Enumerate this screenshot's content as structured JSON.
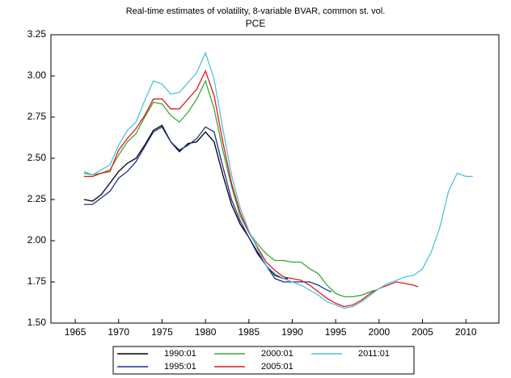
{
  "chart_data": {
    "type": "line",
    "title": "Real-time estimates of volatility, 8-variable BVAR, common st. vol.",
    "subtitle": "PCE",
    "xlim": [
      1962.2,
      2013.8
    ],
    "xticks": [
      1965,
      1970,
      1975,
      1980,
      1985,
      1990,
      1995,
      2000,
      2005,
      2010
    ],
    "ylim": [
      1.5,
      3.25
    ],
    "yticks": [
      {
        "value": 1.5,
        "label": "1.50"
      },
      {
        "value": 1.75,
        "label": "1.75"
      },
      {
        "value": 2.0,
        "label": "2.00"
      },
      {
        "value": 2.25,
        "label": "2.25"
      },
      {
        "value": 2.5,
        "label": "2.50"
      },
      {
        "value": 2.75,
        "label": "2.75"
      },
      {
        "value": 3.0,
        "label": "3.00"
      },
      {
        "value": 3.25,
        "label": "3.25"
      }
    ],
    "series": [
      {
        "name": "1990:01",
        "color": "#000000",
        "x": [
          1966,
          1967,
          1968,
          1969,
          1970,
          1971,
          1972,
          1973,
          1974,
          1975,
          1976,
          1977,
          1978,
          1979,
          1980,
          1981,
          1982,
          1983,
          1984,
          1985,
          1986,
          1987,
          1988,
          1989,
          1989.5
        ],
        "values": [
          2.25,
          2.24,
          2.28,
          2.35,
          2.42,
          2.47,
          2.5,
          2.58,
          2.67,
          2.7,
          2.6,
          2.54,
          2.59,
          2.6,
          2.66,
          2.6,
          2.4,
          2.22,
          2.1,
          2.02,
          1.93,
          1.85,
          1.79,
          1.77,
          1.77
        ]
      },
      {
        "name": "1995:01",
        "color": "#1f2f8f",
        "x": [
          1966,
          1967,
          1968,
          1969,
          1970,
          1971,
          1972,
          1973,
          1974,
          1975,
          1976,
          1977,
          1978,
          1979,
          1980,
          1981,
          1982,
          1983,
          1984,
          1985,
          1986,
          1987,
          1988,
          1989,
          1990,
          1991,
          1992,
          1993,
          1994,
          1994.5
        ],
        "values": [
          2.22,
          2.22,
          2.26,
          2.3,
          2.38,
          2.42,
          2.48,
          2.57,
          2.66,
          2.69,
          2.6,
          2.55,
          2.58,
          2.62,
          2.69,
          2.66,
          2.45,
          2.25,
          2.12,
          2.02,
          1.92,
          1.85,
          1.77,
          1.75,
          1.75,
          1.75,
          1.75,
          1.73,
          1.7,
          1.69
        ]
      },
      {
        "name": "2000:01",
        "color": "#3aa832",
        "x": [
          1966,
          1967,
          1968,
          1969,
          1970,
          1971,
          1972,
          1973,
          1974,
          1975,
          1976,
          1977,
          1978,
          1979,
          1980,
          1981,
          1982,
          1983,
          1984,
          1985,
          1986,
          1987,
          1988,
          1989,
          1990,
          1991,
          1992,
          1993,
          1994,
          1995,
          1996,
          1997,
          1998,
          1999,
          1999.5
        ],
        "values": [
          2.41,
          2.4,
          2.41,
          2.43,
          2.52,
          2.6,
          2.65,
          2.75,
          2.84,
          2.83,
          2.76,
          2.72,
          2.78,
          2.86,
          2.97,
          2.8,
          2.55,
          2.33,
          2.15,
          2.05,
          1.98,
          1.92,
          1.88,
          1.88,
          1.87,
          1.87,
          1.83,
          1.8,
          1.73,
          1.68,
          1.66,
          1.66,
          1.67,
          1.69,
          1.7
        ]
      },
      {
        "name": "2005:01",
        "color": "#e0191e",
        "x": [
          1966,
          1967,
          1968,
          1969,
          1970,
          1971,
          1972,
          1973,
          1974,
          1975,
          1976,
          1977,
          1978,
          1979,
          1980,
          1981,
          1982,
          1983,
          1984,
          1985,
          1986,
          1987,
          1988,
          1989,
          1990,
          1991,
          1992,
          1993,
          1994,
          1995,
          1996,
          1997,
          1998,
          1999,
          2000,
          2001,
          2002,
          2003,
          2004,
          2004.5
        ],
        "values": [
          2.39,
          2.39,
          2.41,
          2.42,
          2.55,
          2.62,
          2.68,
          2.76,
          2.86,
          2.86,
          2.8,
          2.8,
          2.86,
          2.92,
          3.03,
          2.88,
          2.6,
          2.35,
          2.17,
          2.05,
          1.96,
          1.87,
          1.82,
          1.78,
          1.77,
          1.76,
          1.73,
          1.69,
          1.65,
          1.62,
          1.6,
          1.61,
          1.64,
          1.68,
          1.71,
          1.73,
          1.75,
          1.74,
          1.73,
          1.72
        ]
      },
      {
        "name": "2011:01",
        "color": "#4fc3d9",
        "x": [
          1966,
          1967,
          1968,
          1969,
          1970,
          1971,
          1972,
          1973,
          1974,
          1975,
          1976,
          1977,
          1978,
          1979,
          1980,
          1981,
          1982,
          1983,
          1984,
          1985,
          1986,
          1987,
          1988,
          1989,
          1990,
          1991,
          1992,
          1993,
          1994,
          1995,
          1996,
          1997,
          1998,
          1999,
          2000,
          2001,
          2002,
          2003,
          2004,
          2005,
          2006,
          2007,
          2008,
          2009,
          2010,
          2010.8
        ],
        "values": [
          2.42,
          2.4,
          2.43,
          2.46,
          2.58,
          2.67,
          2.72,
          2.85,
          2.97,
          2.95,
          2.89,
          2.9,
          2.96,
          3.02,
          3.14,
          2.98,
          2.68,
          2.4,
          2.2,
          2.06,
          1.95,
          1.85,
          1.8,
          1.77,
          1.75,
          1.73,
          1.7,
          1.67,
          1.63,
          1.61,
          1.59,
          1.6,
          1.63,
          1.67,
          1.71,
          1.74,
          1.76,
          1.78,
          1.79,
          1.83,
          1.93,
          2.08,
          2.3,
          2.41,
          2.39,
          2.39
        ]
      }
    ]
  }
}
